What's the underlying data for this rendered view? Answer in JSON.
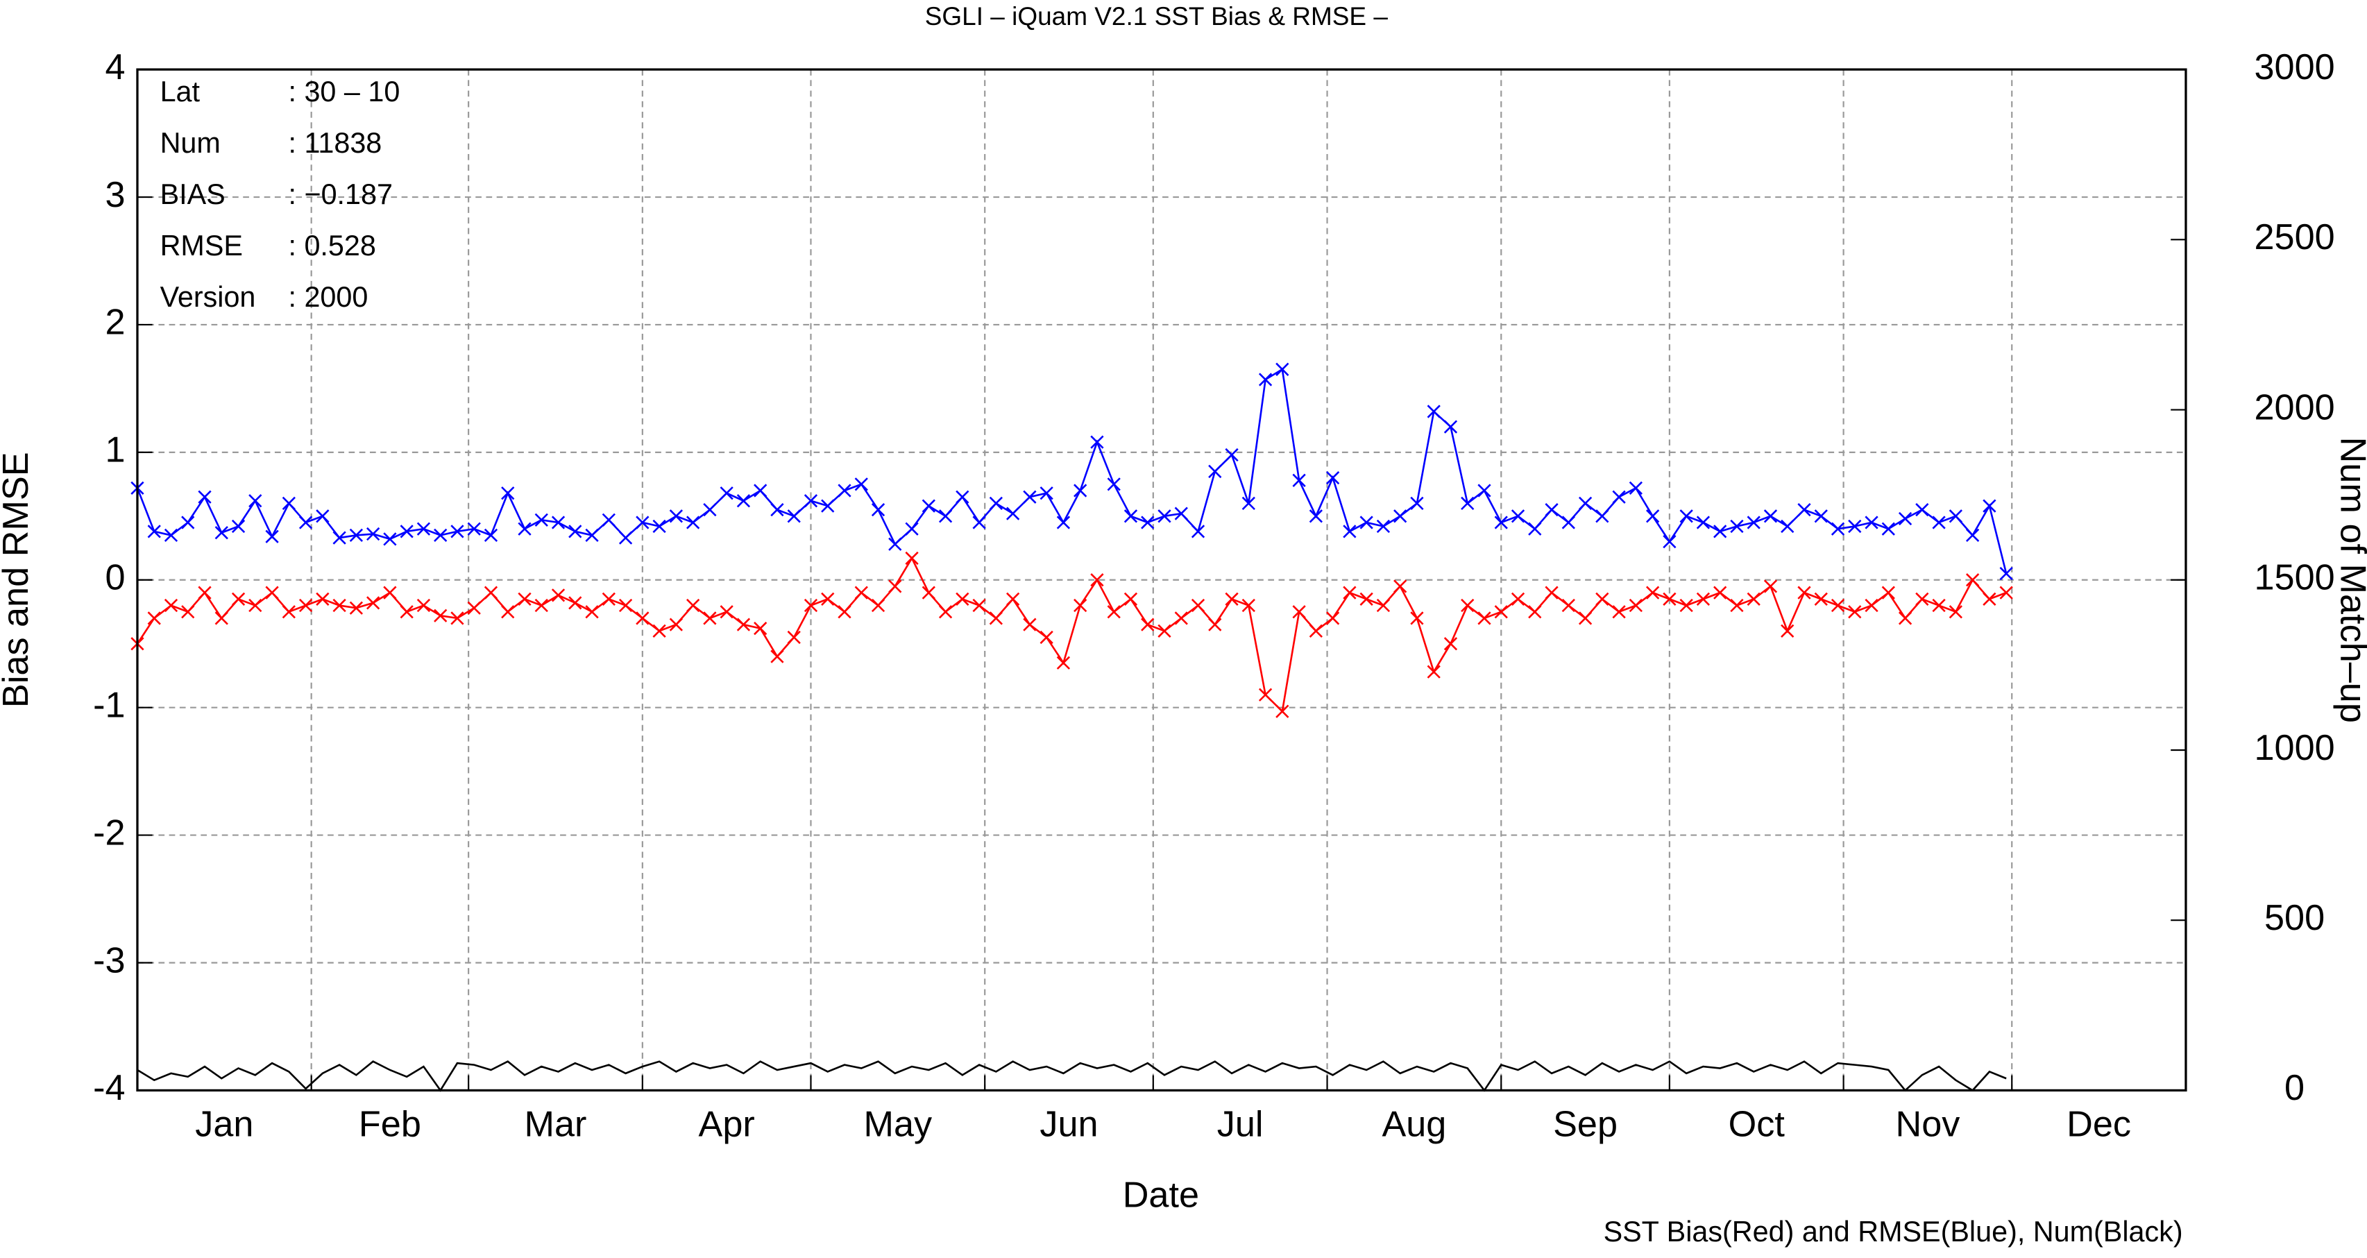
{
  "chart_data": {
    "type": "line",
    "title": "SGLI – iQuam V2.1 SST Bias & RMSE  –",
    "x_label": "Date",
    "y_label": "Bias and RMSE",
    "y2_label": "Num of Match–up",
    "footnote": "SST Bias(Red) and RMSE(Blue), Num(Black)",
    "annotations": [
      [
        "Lat",
        ": 30 – 10"
      ],
      [
        "Num",
        ": 11838"
      ],
      [
        "BIAS",
        ": −0.187"
      ],
      [
        "RMSE",
        ": 0.528"
      ],
      [
        "Version",
        ": 2000"
      ]
    ],
    "grid": true,
    "xlim": [
      0,
      365
    ],
    "xticks": [
      {
        "value": 0,
        "label": "Jan"
      },
      {
        "value": 31,
        "label": "Feb"
      },
      {
        "value": 59,
        "label": "Mar"
      },
      {
        "value": 90,
        "label": "Apr"
      },
      {
        "value": 120,
        "label": "May"
      },
      {
        "value": 151,
        "label": "Jun"
      },
      {
        "value": 181,
        "label": "Jul"
      },
      {
        "value": 212,
        "label": "Aug"
      },
      {
        "value": 243,
        "label": "Sep"
      },
      {
        "value": 273,
        "label": "Oct"
      },
      {
        "value": 304,
        "label": "Nov"
      },
      {
        "value": 334,
        "label": "Dec"
      }
    ],
    "ylim": [
      -4,
      4
    ],
    "yticks": [
      -4,
      -3,
      -2,
      -1,
      0,
      1,
      2,
      3,
      4
    ],
    "y2lim": [
      0,
      3000
    ],
    "y2ticks": [
      0,
      500,
      1000,
      1500,
      2000,
      2500,
      3000
    ],
    "x": [
      0,
      3,
      6,
      9,
      12,
      15,
      18,
      21,
      24,
      27,
      30,
      33,
      36,
      39,
      42,
      45,
      48,
      51,
      54,
      57,
      60,
      63,
      66,
      69,
      72,
      75,
      78,
      81,
      84,
      87,
      90,
      93,
      96,
      99,
      102,
      105,
      108,
      111,
      114,
      117,
      120,
      123,
      126,
      129,
      132,
      135,
      138,
      141,
      144,
      147,
      150,
      153,
      156,
      159,
      162,
      165,
      168,
      171,
      174,
      177,
      180,
      183,
      186,
      189,
      192,
      195,
      198,
      201,
      204,
      207,
      210,
      213,
      216,
      219,
      222,
      225,
      228,
      231,
      234,
      237,
      240,
      243,
      246,
      249,
      252,
      255,
      258,
      261,
      264,
      267,
      270,
      273,
      276,
      279,
      282,
      285,
      288,
      291,
      294,
      297,
      300,
      303,
      306,
      309,
      312,
      315,
      318,
      321,
      324,
      327,
      330,
      333
    ],
    "series": [
      {
        "name": "RMSE",
        "color": "#0000ff",
        "marker": "x",
        "values": [
          0.72,
          0.38,
          0.35,
          0.45,
          0.65,
          0.37,
          0.42,
          0.62,
          0.34,
          0.6,
          0.45,
          0.5,
          0.33,
          0.35,
          0.36,
          0.32,
          0.38,
          0.4,
          0.35,
          0.38,
          0.4,
          0.35,
          0.68,
          0.4,
          0.47,
          0.45,
          0.38,
          0.35,
          0.47,
          0.33,
          0.45,
          0.42,
          0.5,
          0.45,
          0.55,
          0.68,
          0.62,
          0.7,
          0.55,
          0.5,
          0.62,
          0.58,
          0.7,
          0.75,
          0.55,
          0.28,
          0.4,
          0.58,
          0.5,
          0.65,
          0.45,
          0.6,
          0.52,
          0.65,
          0.68,
          0.45,
          0.7,
          1.08,
          0.75,
          0.5,
          0.45,
          0.5,
          0.52,
          0.38,
          0.85,
          0.98,
          0.6,
          1.57,
          1.65,
          0.78,
          0.5,
          0.8,
          0.38,
          0.45,
          0.42,
          0.5,
          0.6,
          1.32,
          1.2,
          0.6,
          0.7,
          0.45,
          0.5,
          0.4,
          0.55,
          0.45,
          0.6,
          0.5,
          0.65,
          0.72,
          0.5,
          0.3,
          0.5,
          0.45,
          0.38,
          0.42,
          0.45,
          0.5,
          0.42,
          0.55,
          0.5,
          0.4,
          0.42,
          0.45,
          0.4,
          0.48,
          0.55,
          0.45,
          0.5,
          0.35,
          0.58,
          0.05
        ]
      },
      {
        "name": "Bias",
        "color": "#ff0000",
        "marker": "x",
        "values": [
          -0.5,
          -0.3,
          -0.2,
          -0.25,
          -0.1,
          -0.3,
          -0.15,
          -0.2,
          -0.1,
          -0.25,
          -0.2,
          -0.15,
          -0.2,
          -0.22,
          -0.18,
          -0.1,
          -0.25,
          -0.2,
          -0.28,
          -0.3,
          -0.22,
          -0.1,
          -0.25,
          -0.15,
          -0.2,
          -0.12,
          -0.18,
          -0.25,
          -0.15,
          -0.2,
          -0.3,
          -0.4,
          -0.35,
          -0.2,
          -0.3,
          -0.25,
          -0.35,
          -0.38,
          -0.6,
          -0.45,
          -0.2,
          -0.15,
          -0.25,
          -0.1,
          -0.2,
          -0.05,
          0.17,
          -0.1,
          -0.25,
          -0.15,
          -0.2,
          -0.3,
          -0.15,
          -0.35,
          -0.45,
          -0.65,
          -0.2,
          0.0,
          -0.25,
          -0.15,
          -0.35,
          -0.4,
          -0.3,
          -0.2,
          -0.35,
          -0.15,
          -0.2,
          -0.9,
          -1.03,
          -0.25,
          -0.4,
          -0.3,
          -0.1,
          -0.15,
          -0.2,
          -0.05,
          -0.3,
          -0.72,
          -0.5,
          -0.2,
          -0.3,
          -0.25,
          -0.15,
          -0.25,
          -0.1,
          -0.2,
          -0.3,
          -0.15,
          -0.25,
          -0.2,
          -0.1,
          -0.15,
          -0.2,
          -0.15,
          -0.1,
          -0.2,
          -0.15,
          -0.05,
          -0.4,
          -0.1,
          -0.15,
          -0.2,
          -0.25,
          -0.2,
          -0.1,
          -0.3,
          -0.15,
          -0.2,
          -0.25,
          0.0,
          -0.15,
          -0.1
        ]
      },
      {
        "name": "Num",
        "color": "#000000",
        "axis": "y2",
        "values": [
          60,
          30,
          50,
          40,
          70,
          35,
          65,
          45,
          80,
          55,
          5,
          50,
          75,
          45,
          85,
          60,
          40,
          70,
          0,
          80,
          75,
          60,
          85,
          45,
          70,
          55,
          80,
          60,
          75,
          50,
          70,
          85,
          55,
          80,
          65,
          75,
          50,
          85,
          60,
          70,
          80,
          55,
          75,
          65,
          85,
          50,
          70,
          60,
          80,
          45,
          75,
          55,
          85,
          60,
          70,
          50,
          80,
          65,
          75,
          55,
          80,
          45,
          70,
          60,
          85,
          50,
          75,
          55,
          80,
          65,
          70,
          45,
          75,
          60,
          85,
          50,
          70,
          55,
          80,
          65,
          0,
          75,
          60,
          85,
          50,
          70,
          45,
          80,
          55,
          75,
          60,
          85,
          50,
          70,
          65,
          80,
          55,
          75,
          60,
          85,
          50,
          80,
          75,
          70,
          60,
          0,
          45,
          70,
          30,
          0,
          55,
          35
        ]
      }
    ]
  }
}
